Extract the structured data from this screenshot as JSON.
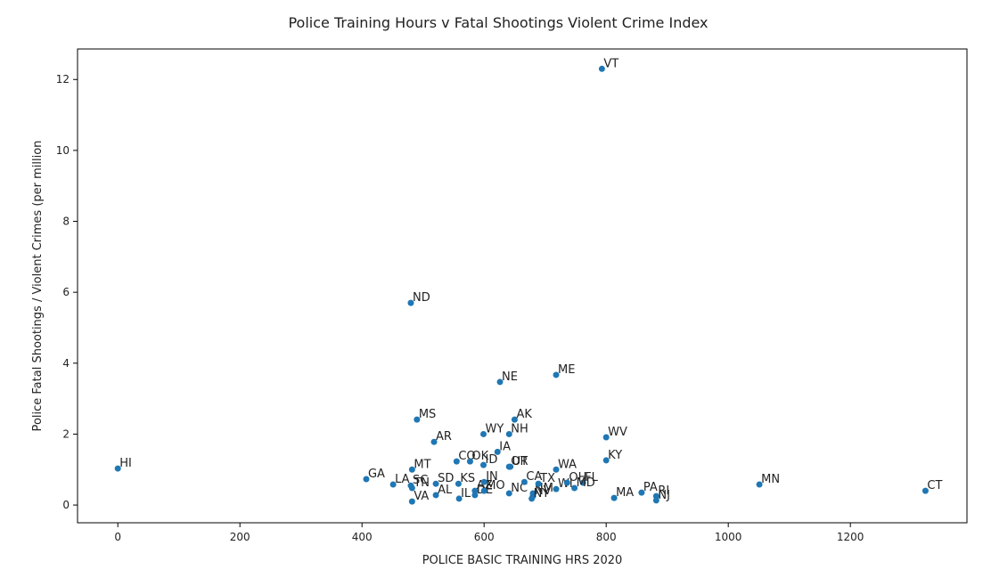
{
  "chart_data": {
    "type": "scatter",
    "title": "Police Training Hours v Fatal Shootings Violent Crime Index",
    "x_label": "POLICE BASIC TRAINING HRS 2020",
    "y_label": "Police Fatal Shootings / Violent Crimes (per million",
    "color": "#1f77b4",
    "labels": [
      "HI",
      "GA",
      "LA",
      "SC",
      "TN",
      "VA",
      "MT",
      "ND",
      "MS",
      "AR",
      "SD",
      "AL",
      "KS",
      "CO",
      "OK",
      "IL",
      "AZ",
      "DE",
      "ID",
      "WY",
      "IN",
      "MO",
      "NE",
      "NC",
      "IA",
      "NH",
      "OR",
      "UT",
      "AK",
      "CA",
      "NV",
      "NM",
      "NY",
      "TX",
      "WA",
      "ME",
      "WI",
      "OH",
      "FL",
      "MD",
      "WV",
      "KY",
      "MA",
      "PA",
      "RI",
      "NJ",
      "MN",
      "CT",
      "VT"
    ],
    "x": [
      0,
      407,
      451,
      480,
      482,
      482,
      482,
      480,
      490,
      518,
      521,
      521,
      558,
      555,
      577,
      559,
      585,
      585,
      599,
      599,
      600,
      600,
      626,
      641,
      622,
      641,
      641,
      643,
      650,
      666,
      680,
      680,
      678,
      689,
      718,
      718,
      718,
      736,
      762,
      748,
      800,
      800,
      813,
      858,
      882,
      882,
      1051,
      1323,
      793
    ],
    "values": [
      1.03,
      0.73,
      0.58,
      0.55,
      0.48,
      0.1,
      1.0,
      5.7,
      2.41,
      1.78,
      0.6,
      0.28,
      0.6,
      1.23,
      1.23,
      0.18,
      0.4,
      0.28,
      1.13,
      2.0,
      0.65,
      0.4,
      3.47,
      0.33,
      1.5,
      2.0,
      1.08,
      1.08,
      2.41,
      0.65,
      0.25,
      0.33,
      0.18,
      0.6,
      1.0,
      3.67,
      0.45,
      0.63,
      0.63,
      0.48,
      1.91,
      1.26,
      0.2,
      0.35,
      0.25,
      0.13,
      0.58,
      0.4,
      12.3
    ],
    "xlim": [
      -66,
      1391
    ],
    "ylim": [
      -0.5,
      12.86
    ],
    "xticks": [
      0,
      200,
      400,
      600,
      800,
      1000,
      1200
    ],
    "yticks": [
      0,
      2,
      4,
      6,
      8,
      10,
      12
    ]
  }
}
